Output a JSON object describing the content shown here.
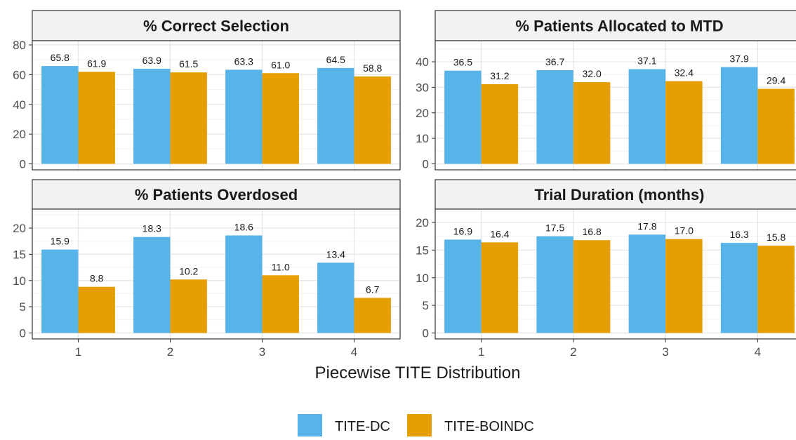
{
  "chart_data": {
    "type": "bar",
    "xlabel": "Piecewise TITE Distribution",
    "legend": {
      "position": "bottom",
      "entries": [
        {
          "name": "TITE-DC",
          "color": "#56B4E9"
        },
        {
          "name": "TITE-BOINDC",
          "color": "#E69F00"
        }
      ]
    },
    "grid": true,
    "panels": [
      {
        "title": "% Correct Selection",
        "categories": [
          "1",
          "2",
          "3",
          "4"
        ],
        "ylim": [
          0,
          80
        ],
        "yticks": [
          0,
          20,
          40,
          60,
          80
        ],
        "series": [
          {
            "name": "TITE-DC",
            "values": [
              65.8,
              63.9,
              63.3,
              64.5
            ]
          },
          {
            "name": "TITE-BOINDC",
            "values": [
              61.9,
              61.5,
              61.0,
              58.8
            ]
          }
        ]
      },
      {
        "title": "% Patients Allocated to MTD",
        "categories": [
          "1",
          "2",
          "3",
          "4"
        ],
        "ylim": [
          0,
          40
        ],
        "yticks": [
          0,
          10,
          20,
          30,
          40
        ],
        "series": [
          {
            "name": "TITE-DC",
            "values": [
              36.5,
              36.7,
              37.1,
              37.9
            ]
          },
          {
            "name": "TITE-BOINDC",
            "values": [
              31.2,
              32.0,
              32.4,
              29.4
            ]
          }
        ]
      },
      {
        "title": "% Patients Overdosed",
        "categories": [
          "1",
          "2",
          "3",
          "4"
        ],
        "ylim": [
          0,
          20
        ],
        "yticks": [
          0,
          5,
          10,
          15,
          20
        ],
        "series": [
          {
            "name": "TITE-DC",
            "values": [
              15.9,
              18.3,
              18.6,
              13.4
            ]
          },
          {
            "name": "TITE-BOINDC",
            "values": [
              8.8,
              10.2,
              11.0,
              6.7
            ]
          }
        ]
      },
      {
        "title": "Trial Duration (months)",
        "categories": [
          "1",
          "2",
          "3",
          "4"
        ],
        "ylim": [
          0,
          20
        ],
        "yticks": [
          0,
          5,
          10,
          15,
          20
        ],
        "series": [
          {
            "name": "TITE-DC",
            "values": [
              16.9,
              17.5,
              17.8,
              16.3
            ]
          },
          {
            "name": "TITE-BOINDC",
            "values": [
              16.4,
              16.8,
              17.0,
              15.8
            ]
          }
        ]
      }
    ]
  }
}
